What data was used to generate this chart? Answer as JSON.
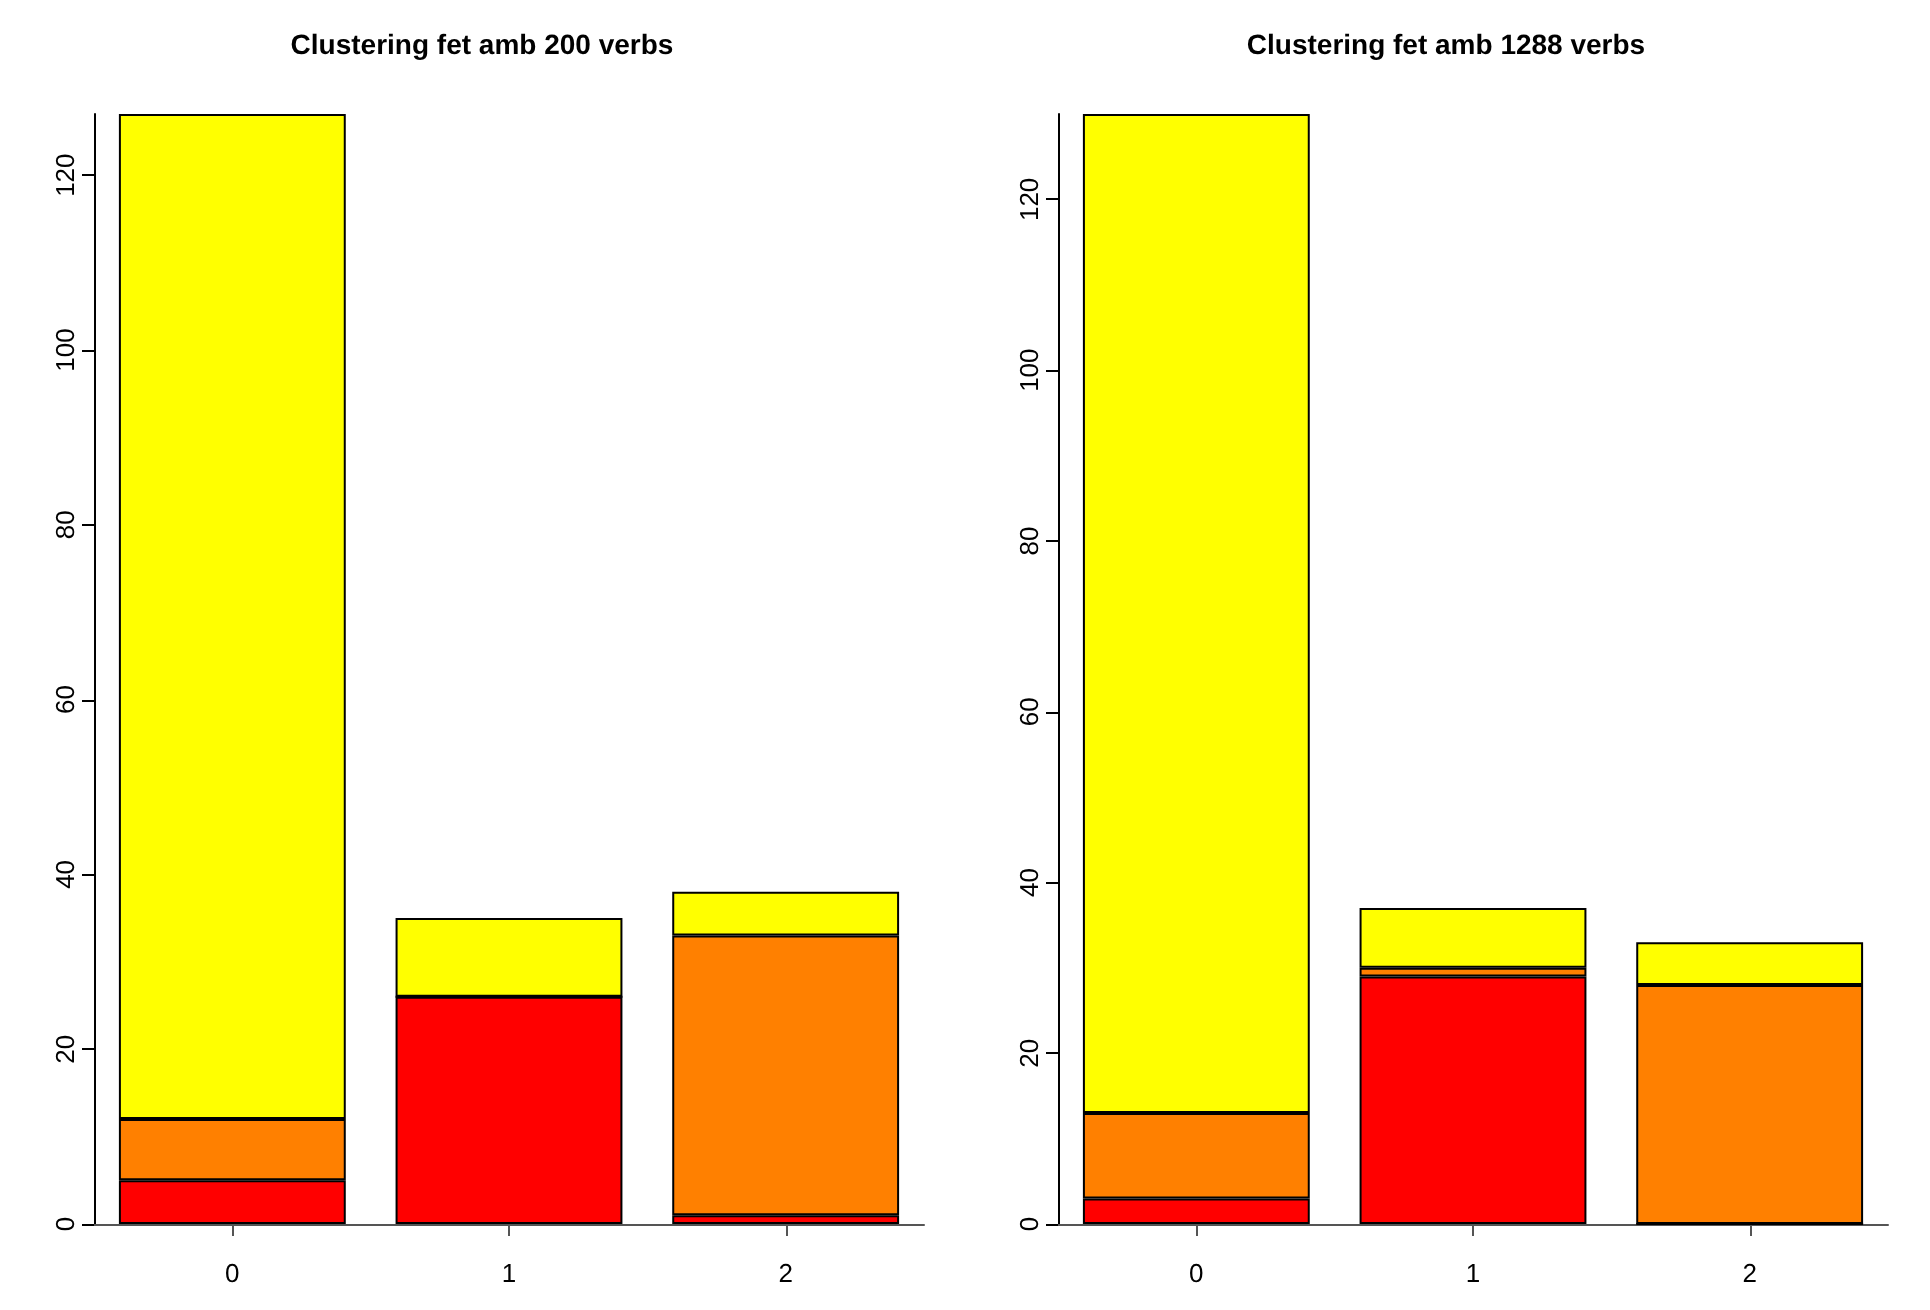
{
  "chart_data": [
    {
      "type": "bar",
      "title": "Clustering fet amb 200 verbs",
      "categories": [
        "0",
        "1",
        "2"
      ],
      "stacked": true,
      "ylim": [
        0,
        127
      ],
      "yticks": [
        0,
        20,
        40,
        60,
        80,
        100,
        120
      ],
      "series": [
        {
          "color": "#ff0000",
          "values": [
            5,
            26,
            1
          ]
        },
        {
          "color": "#ff8000",
          "values": [
            7,
            0,
            32
          ]
        },
        {
          "color": "#ffff00",
          "values": [
            115,
            9,
            5
          ]
        }
      ]
    },
    {
      "type": "bar",
      "title": "Clustering fet amb 1288 verbs",
      "categories": [
        "0",
        "1",
        "2"
      ],
      "stacked": true,
      "ylim": [
        0,
        130
      ],
      "yticks": [
        0,
        20,
        40,
        60,
        80,
        100,
        120
      ],
      "series": [
        {
          "color": "#ff0000",
          "values": [
            3,
            29,
            0
          ]
        },
        {
          "color": "#ff8000",
          "values": [
            10,
            1,
            28
          ]
        },
        {
          "color": "#ffff00",
          "values": [
            117,
            7,
            5
          ]
        }
      ]
    }
  ]
}
